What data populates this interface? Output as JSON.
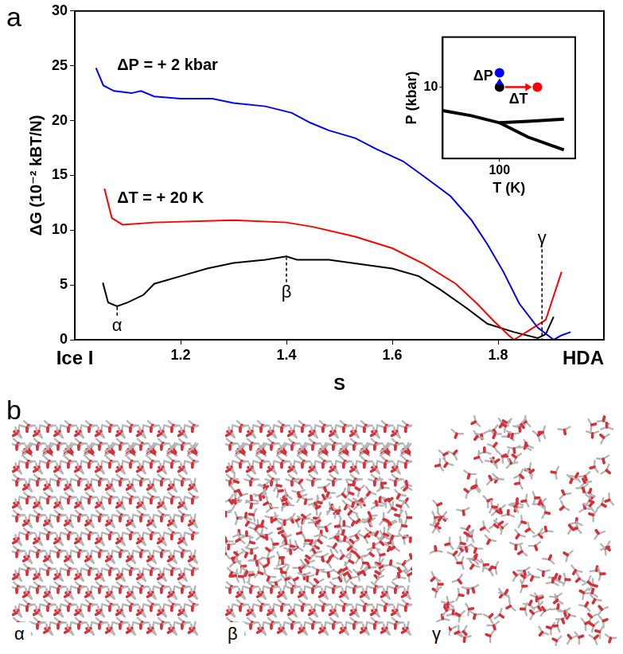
{
  "figure": {
    "panel_labels": [
      "a",
      "b"
    ]
  },
  "chart_data": [
    {
      "type": "line",
      "x_label": "S",
      "y_label": "ΔG (10⁻² kBT/N)",
      "x_end_labels": [
        "Ice I",
        "HDA"
      ],
      "xlim": [
        1.0,
        2.0
      ],
      "xticks": [
        1.2,
        1.4,
        1.6,
        1.8
      ],
      "ylim": [
        0,
        30
      ],
      "yticks": [
        0,
        5,
        10,
        15,
        20,
        25,
        30
      ],
      "grid": false,
      "series": [
        {
          "name": "ΔP = + 2 kbar",
          "color": "#0000ff",
          "label_x": 1.08,
          "label_y": 25.0,
          "x": [
            1.04,
            1.054,
            1.074,
            1.107,
            1.125,
            1.15,
            1.2,
            1.26,
            1.3,
            1.36,
            1.41,
            1.445,
            1.48,
            1.53,
            1.57,
            1.62,
            1.66,
            1.71,
            1.75,
            1.78,
            1.81,
            1.84,
            1.875,
            1.905,
            1.92,
            1.937
          ],
          "values": [
            24.8,
            23.2,
            22.7,
            22.5,
            22.7,
            22.2,
            22.0,
            22.0,
            21.6,
            21.3,
            20.7,
            19.8,
            19.1,
            18.4,
            17.4,
            16.3,
            14.9,
            13.1,
            10.9,
            8.7,
            6.2,
            3.3,
            1.1,
            0.0,
            0.4,
            0.7
          ]
        },
        {
          "name": "ΔT = + 20 K",
          "color": "#ff0000",
          "label_x": 1.08,
          "label_y": 12.9,
          "x": [
            1.056,
            1.07,
            1.09,
            1.15,
            1.3,
            1.4,
            1.45,
            1.53,
            1.6,
            1.66,
            1.72,
            1.76,
            1.79,
            1.82,
            1.83,
            1.86,
            1.89,
            1.92
          ],
          "values": [
            13.8,
            11.1,
            10.5,
            10.7,
            10.9,
            10.7,
            10.3,
            9.4,
            8.35,
            6.9,
            5.1,
            3.3,
            1.8,
            0.4,
            0.0,
            0.9,
            1.8,
            6.2
          ]
        },
        {
          "color": "#000000",
          "x": [
            1.053,
            1.063,
            1.08,
            1.1,
            1.13,
            1.15,
            1.2,
            1.25,
            1.3,
            1.36,
            1.4,
            1.42,
            1.48,
            1.54,
            1.6,
            1.65,
            1.69,
            1.74,
            1.78,
            1.83,
            1.875,
            1.89,
            1.905
          ],
          "values": [
            5.2,
            3.4,
            3.05,
            3.4,
            4.1,
            5.1,
            5.8,
            6.5,
            7.0,
            7.3,
            7.6,
            7.3,
            7.3,
            6.9,
            6.5,
            5.8,
            4.6,
            2.9,
            1.45,
            0.7,
            0.15,
            0.5,
            2.1
          ]
        }
      ],
      "annotations": [
        {
          "text": "α",
          "x": 1.08,
          "y": 1.25,
          "mark_y": 3.0
        },
        {
          "text": "β",
          "x": 1.4,
          "y": 4.3,
          "mark_y": 7.5
        },
        {
          "text": "γ",
          "x": 1.883,
          "y": 9.2,
          "mark_y": 0
        }
      ]
    },
    {
      "type": "line",
      "x_label": "T (K)",
      "y_label": "P (kbar)",
      "xlim": [
        70,
        140
      ],
      "xticks": [
        100
      ],
      "ylim": [
        0,
        17
      ],
      "yticks": [
        10
      ],
      "grid": false,
      "series": [
        {
          "color": "#000000",
          "x": [
            70,
            85,
            100,
            115,
            134
          ],
          "values": [
            6.7,
            6.0,
            5.0,
            5.2,
            5.5
          ]
        },
        {
          "color": "#000000",
          "x": [
            100,
            115,
            134
          ],
          "values": [
            5.0,
            3.0,
            1.2
          ]
        }
      ],
      "points": {
        "x": [
          100,
          100,
          120
        ],
        "values": [
          10,
          12,
          10
        ],
        "colors": [
          "#000000",
          "#0000ff",
          "#ff0000"
        ]
      },
      "arrows": [
        {
          "text": "ΔP",
          "from": 0,
          "to": 1
        },
        {
          "text": "ΔT",
          "from": 0,
          "to": 2
        }
      ]
    }
  ],
  "snapshots": [
    {
      "label": "α"
    },
    {
      "label": "β"
    },
    {
      "label": "γ"
    }
  ]
}
